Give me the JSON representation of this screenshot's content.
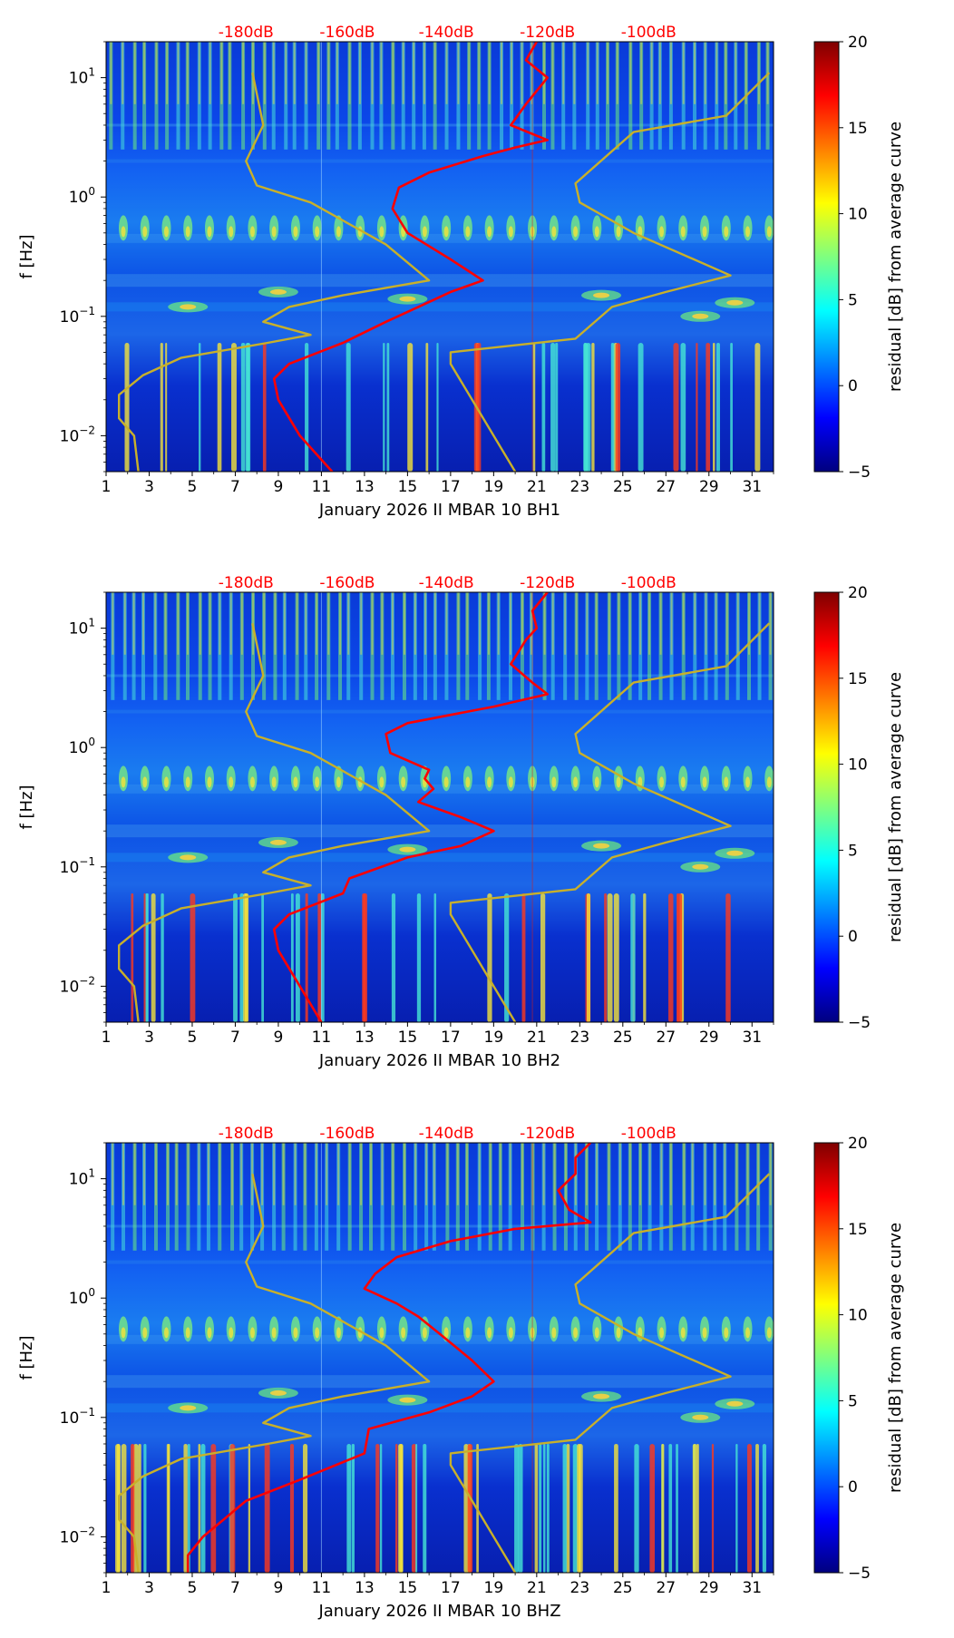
{
  "chart_data": [
    {
      "type": "heatmap",
      "xlabel": "January 2026 II MBAR 10 BH1",
      "ylabel": "f [Hz]",
      "x_ticks": [
        "1",
        "3",
        "5",
        "7",
        "9",
        "11",
        "13",
        "15",
        "17",
        "19",
        "21",
        "23",
        "25",
        "27",
        "29",
        "31"
      ],
      "x_range": [
        1,
        32
      ],
      "y_range": [
        0.005,
        20
      ],
      "y_ticks": [
        {
          "base": "10",
          "exp": "1",
          "value": 10
        },
        {
          "base": "10",
          "exp": "0",
          "value": 1
        },
        {
          "base": "10",
          "exp": "−1",
          "value": 0.1
        },
        {
          "base": "10",
          "exp": "−2",
          "value": 0.01
        }
      ],
      "top_ticks": [
        "-180dB",
        "-160dB",
        "-140dB",
        "-120dB",
        "-100dB"
      ],
      "colorbar": {
        "label": "residual [dB] from average curve",
        "ticks": [
          "20",
          "15",
          "10",
          "5",
          "0",
          "−5"
        ],
        "range": [
          -5,
          20
        ]
      },
      "series": [
        {
          "name": "station median PSD (red)",
          "x": [
            11.5,
            10,
            9,
            8.8,
            9.5,
            12,
            14,
            15.5,
            17,
            18.5,
            17,
            15,
            14.3,
            14.6,
            16,
            18.5,
            20,
            21.5,
            19.8,
            20.5,
            21.5,
            20.5,
            21
          ],
          "y": [
            0.005,
            0.01,
            0.02,
            0.03,
            0.04,
            0.06,
            0.09,
            0.12,
            0.16,
            0.2,
            0.3,
            0.5,
            0.8,
            1.2,
            1.6,
            2.2,
            2.6,
            3,
            4,
            6,
            10,
            14,
            20
          ]
        },
        {
          "name": "NLNM (yellow)",
          "x": [
            2.5,
            2.3,
            1.6,
            1.6,
            2.7,
            4.5,
            8.5,
            10.5,
            8.3,
            9.5,
            12,
            16,
            14,
            10.5,
            8,
            7.5,
            8.3,
            7.8
          ],
          "y": [
            0.005,
            0.01,
            0.014,
            0.022,
            0.032,
            0.045,
            0.06,
            0.07,
            0.09,
            0.12,
            0.15,
            0.2,
            0.4,
            0.9,
            1.25,
            2,
            4,
            11
          ]
        },
        {
          "name": "NHNM (yellow)",
          "x": [
            20,
            17,
            17,
            22.8,
            24.5,
            27,
            30,
            25.5,
            23,
            22.8,
            25.5,
            29.8,
            31.8
          ],
          "y": [
            0.005,
            0.04,
            0.05,
            0.065,
            0.12,
            0.16,
            0.22,
            0.5,
            0.9,
            1.3,
            3.5,
            4.8,
            11
          ]
        }
      ]
    },
    {
      "type": "heatmap",
      "xlabel": "January 2026 II MBAR 10 BH2",
      "ylabel": "f [Hz]",
      "x_ticks": [
        "1",
        "3",
        "5",
        "7",
        "9",
        "11",
        "13",
        "15",
        "17",
        "19",
        "21",
        "23",
        "25",
        "27",
        "29",
        "31"
      ],
      "x_range": [
        1,
        32
      ],
      "y_range": [
        0.005,
        20
      ],
      "y_ticks": [
        {
          "base": "10",
          "exp": "1",
          "value": 10
        },
        {
          "base": "10",
          "exp": "0",
          "value": 1
        },
        {
          "base": "10",
          "exp": "−1",
          "value": 0.1
        },
        {
          "base": "10",
          "exp": "−2",
          "value": 0.01
        }
      ],
      "top_ticks": [
        "-180dB",
        "-160dB",
        "-140dB",
        "-120dB",
        "-100dB"
      ],
      "colorbar": {
        "label": "residual [dB] from average curve",
        "ticks": [
          "20",
          "15",
          "10",
          "5",
          "0",
          "−5"
        ],
        "range": [
          -5,
          20
        ]
      },
      "series": [
        {
          "name": "station median PSD (red)",
          "x": [
            11,
            10,
            9,
            8.8,
            9.5,
            12,
            12.3,
            15,
            17.5,
            19,
            17.5,
            15.5,
            16.2,
            15.8,
            16,
            14.2,
            14,
            15,
            19,
            21.5,
            20.8,
            19.8,
            20.5,
            21,
            20.8,
            21.5
          ],
          "y": [
            0.005,
            0.01,
            0.02,
            0.03,
            0.04,
            0.06,
            0.08,
            0.12,
            0.15,
            0.2,
            0.26,
            0.35,
            0.45,
            0.55,
            0.65,
            0.9,
            1.3,
            1.6,
            2.2,
            2.8,
            3.5,
            5,
            8,
            10,
            14,
            20
          ]
        },
        {
          "name": "NLNM (yellow)",
          "x": [
            2.5,
            2.3,
            1.6,
            1.6,
            2.7,
            4.5,
            8.5,
            10.5,
            8.3,
            9.5,
            12,
            16,
            14,
            10.5,
            8,
            7.5,
            8.3,
            7.8
          ],
          "y": [
            0.005,
            0.01,
            0.014,
            0.022,
            0.032,
            0.045,
            0.06,
            0.07,
            0.09,
            0.12,
            0.15,
            0.2,
            0.4,
            0.9,
            1.25,
            2,
            4,
            11
          ]
        },
        {
          "name": "NHNM (yellow)",
          "x": [
            20,
            17,
            17,
            22.8,
            24.5,
            27,
            30,
            25.5,
            23,
            22.8,
            25.5,
            29.8,
            31.8
          ],
          "y": [
            0.005,
            0.04,
            0.05,
            0.065,
            0.12,
            0.16,
            0.22,
            0.5,
            0.9,
            1.3,
            3.5,
            4.8,
            11
          ]
        }
      ]
    },
    {
      "type": "heatmap",
      "xlabel": "January 2026 II MBAR 10 BHZ",
      "ylabel": "f [Hz]",
      "x_ticks": [
        "1",
        "3",
        "5",
        "7",
        "9",
        "11",
        "13",
        "15",
        "17",
        "19",
        "21",
        "23",
        "25",
        "27",
        "29",
        "31"
      ],
      "x_range": [
        1,
        32
      ],
      "y_range": [
        0.005,
        20
      ],
      "y_ticks": [
        {
          "base": "10",
          "exp": "1",
          "value": 10
        },
        {
          "base": "10",
          "exp": "0",
          "value": 1
        },
        {
          "base": "10",
          "exp": "−1",
          "value": 0.1
        },
        {
          "base": "10",
          "exp": "−2",
          "value": 0.01
        }
      ],
      "top_ticks": [
        "-180dB",
        "-160dB",
        "-140dB",
        "-120dB",
        "-100dB"
      ],
      "colorbar": {
        "label": "residual [dB] from average curve",
        "ticks": [
          "20",
          "15",
          "10",
          "5",
          "0",
          "−5"
        ],
        "range": [
          -5,
          20
        ]
      },
      "series": [
        {
          "name": "station median PSD (red)",
          "x": [
            4.8,
            4.8,
            5.5,
            7.5,
            10,
            13,
            13.2,
            16,
            18,
            19,
            18,
            16.5,
            15.5,
            14.5,
            13,
            13.5,
            14.5,
            17,
            20,
            23.5,
            22.5,
            22,
            22.8,
            22.8,
            23.5
          ],
          "y": [
            0.005,
            0.007,
            0.01,
            0.02,
            0.03,
            0.05,
            0.08,
            0.11,
            0.15,
            0.2,
            0.3,
            0.5,
            0.7,
            0.9,
            1.2,
            1.6,
            2.2,
            3,
            3.8,
            4.3,
            5.5,
            8,
            11,
            15,
            20
          ]
        },
        {
          "name": "NLNM (yellow)",
          "x": [
            2.5,
            2.3,
            1.6,
            1.6,
            2.7,
            4.5,
            8.5,
            10.5,
            8.3,
            9.5,
            12,
            16,
            14,
            10.5,
            8,
            7.5,
            8.3,
            7.8
          ],
          "y": [
            0.005,
            0.01,
            0.014,
            0.022,
            0.032,
            0.045,
            0.06,
            0.07,
            0.09,
            0.12,
            0.15,
            0.2,
            0.4,
            0.9,
            1.25,
            2,
            4,
            11
          ]
        },
        {
          "name": "NHNM (yellow)",
          "x": [
            20,
            17,
            17,
            22.8,
            24.5,
            27,
            30,
            25.5,
            23,
            22.8,
            25.5,
            29.8,
            31.8
          ],
          "y": [
            0.005,
            0.04,
            0.05,
            0.065,
            0.12,
            0.16,
            0.22,
            0.5,
            0.9,
            1.3,
            3.5,
            4.8,
            11
          ]
        }
      ]
    }
  ],
  "colors": {
    "red_curve": "#ff0000",
    "model_curve": "#c8b02a",
    "top_tick_text": "#ff0000",
    "cmap": [
      "#00007f",
      "#0000ff",
      "#007fff",
      "#00ffff",
      "#7fff7f",
      "#ffff00",
      "#ff7f00",
      "#ff0000",
      "#7f0000"
    ]
  }
}
